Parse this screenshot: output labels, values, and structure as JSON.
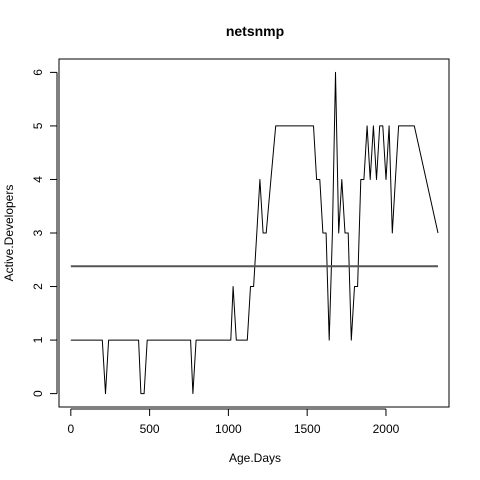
{
  "chart_data": {
    "type": "line",
    "title": "netsnmp",
    "xlabel": "Age.Days",
    "ylabel": "Active.Developers",
    "xlim": [
      -75,
      2400
    ],
    "ylim": [
      -0.25,
      6.25
    ],
    "x_ticks": [
      0,
      500,
      1000,
      1500,
      2000
    ],
    "y_ticks": [
      0,
      1,
      2,
      3,
      4,
      5,
      6
    ],
    "grid": false,
    "line_color": "#000000",
    "reference_line_color": "#555555",
    "series": [
      {
        "x": [
          0,
          200,
          220,
          240,
          430,
          445,
          465,
          485,
          760,
          775,
          795,
          1015,
          1030,
          1050,
          1120,
          1140,
          1160,
          1180,
          1200,
          1220,
          1240,
          1270,
          1300,
          1320,
          1540,
          1560,
          1580,
          1600,
          1620,
          1640,
          1660,
          1680,
          1700,
          1720,
          1740,
          1760,
          1780,
          1800,
          1820,
          1840,
          1860,
          1880,
          1900,
          1920,
          1940,
          1960,
          1980,
          2000,
          2020,
          2040,
          2060,
          2080,
          2100,
          2120,
          2140,
          2160,
          2180,
          2330
        ],
        "y": [
          1,
          1,
          0,
          1,
          1,
          0,
          0,
          1,
          1,
          0,
          1,
          1,
          2,
          1,
          1,
          2,
          2,
          3,
          4,
          3,
          3,
          4,
          5,
          5,
          5,
          4,
          4,
          3,
          3,
          1,
          3,
          6,
          3,
          4,
          3,
          3,
          1,
          2,
          2,
          4,
          4,
          5,
          4,
          5,
          4,
          5,
          5,
          4,
          5,
          3,
          4,
          5,
          5,
          5,
          5,
          5,
          5,
          3
        ]
      },
      {
        "x": [
          0,
          2330
        ],
        "y": [
          2.38,
          2.38
        ]
      }
    ]
  }
}
